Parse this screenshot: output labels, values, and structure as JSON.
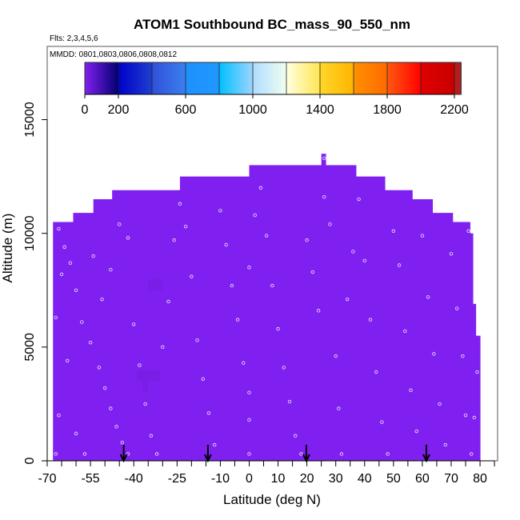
{
  "chart_data": {
    "type": "heatmap",
    "title": "ATOM1 Southbound BC_mass_90_550_nm",
    "subtitle": "Flts: 2,3,4,5,6",
    "annotation": "MMDD: 0801,0803,0806,0808,0812",
    "xlabel": "Latitude (deg N)",
    "ylabel": "Altitude (m)",
    "xlim": [
      -70,
      85
    ],
    "ylim": [
      0,
      18200
    ],
    "xticks": [
      -70,
      -65,
      -60,
      -55,
      -50,
      -45,
      -40,
      -35,
      -30,
      -25,
      -20,
      -15,
      -10,
      -5,
      0,
      5,
      10,
      15,
      20,
      25,
      30,
      35,
      40,
      45,
      50,
      55,
      60,
      65,
      70,
      75,
      80,
      85
    ],
    "xtick_labels": [
      "-70",
      "-55",
      "-40",
      "-25",
      "-10",
      "0",
      "10",
      "20",
      "30",
      "40",
      "50",
      "60",
      "70",
      "80"
    ],
    "xtick_label_values": [
      -70,
      -55,
      -40,
      -25,
      -10,
      0,
      10,
      20,
      30,
      40,
      50,
      60,
      70,
      80
    ],
    "yticks": [
      0,
      5000,
      10000,
      15000
    ],
    "ytick_labels": [
      "0",
      "5000",
      "10000",
      "15000"
    ],
    "grid": false,
    "fill_color": "#8020f0",
    "fill_value": 0,
    "coverage_profile": [
      {
        "lat_from": -68,
        "lat_to": -61,
        "alt_top": 10500
      },
      {
        "lat_from": -61,
        "lat_to": -54,
        "alt_top": 10900
      },
      {
        "lat_from": -54,
        "lat_to": -47.5,
        "alt_top": 11500
      },
      {
        "lat_from": -47.5,
        "lat_to": -24,
        "alt_top": 11900
      },
      {
        "lat_from": -24,
        "lat_to": 0,
        "alt_top": 12500
      },
      {
        "lat_from": 0,
        "lat_to": 25,
        "alt_top": 13000
      },
      {
        "lat_from": 25,
        "lat_to": 26.5,
        "alt_top": 13500
      },
      {
        "lat_from": 26.5,
        "lat_to": 37,
        "alt_top": 13000
      },
      {
        "lat_from": 37,
        "lat_to": 47,
        "alt_top": 12500
      },
      {
        "lat_from": 47,
        "lat_to": 56.5,
        "alt_top": 11900
      },
      {
        "lat_from": 56.5,
        "lat_to": 63.5,
        "alt_top": 11500
      },
      {
        "lat_from": 63.5,
        "lat_to": 70.5,
        "alt_top": 10900
      },
      {
        "lat_from": 70.5,
        "lat_to": 76.5,
        "alt_top": 10500
      },
      {
        "lat_from": 76.5,
        "lat_to": 77.5,
        "alt_top": 10000
      },
      {
        "lat_from": 77.5,
        "lat_to": 78.5,
        "alt_top": 6900
      },
      {
        "lat_from": 78.5,
        "lat_to": 80,
        "alt_top": 5500
      }
    ],
    "patches": [
      {
        "lat_from": -35,
        "lat_to": -30,
        "alt_from": 7500,
        "alt_to": 8000,
        "color": "#7a1ee6"
      },
      {
        "lat_from": -39,
        "lat_to": -31,
        "alt_from": 3500,
        "alt_to": 4000,
        "color": "#7a1ee6"
      },
      {
        "lat_from": -37,
        "lat_to": -35,
        "alt_from": 3000,
        "alt_to": 3500,
        "color": "#7a1ee6"
      }
    ],
    "sample_points": [
      [
        -66,
        10200
      ],
      [
        -64,
        9400
      ],
      [
        -62,
        8700
      ],
      [
        -60,
        7500
      ],
      [
        -58,
        6100
      ],
      [
        -55,
        5200
      ],
      [
        -52,
        4100
      ],
      [
        -50,
        3200
      ],
      [
        -48,
        2300
      ],
      [
        -46,
        1500
      ],
      [
        -44,
        800
      ],
      [
        -42,
        300
      ],
      [
        -66,
        2000
      ],
      [
        -63,
        4400
      ],
      [
        -60,
        1200
      ],
      [
        -57,
        300
      ],
      [
        -54,
        9000
      ],
      [
        -51,
        7100
      ],
      [
        -48,
        8400
      ],
      [
        -45,
        10400
      ],
      [
        -42,
        9800
      ],
      [
        -40,
        6000
      ],
      [
        -38,
        4200
      ],
      [
        -36,
        2500
      ],
      [
        -34,
        1100
      ],
      [
        -32,
        300
      ],
      [
        -30,
        5000
      ],
      [
        -28,
        7000
      ],
      [
        -26,
        9700
      ],
      [
        -24,
        11300
      ],
      [
        -22,
        10300
      ],
      [
        -20,
        8100
      ],
      [
        -18,
        5300
      ],
      [
        -16,
        3600
      ],
      [
        -14,
        2100
      ],
      [
        -12,
        700
      ],
      [
        -10,
        11000
      ],
      [
        -8,
        9500
      ],
      [
        -6,
        7700
      ],
      [
        -4,
        6200
      ],
      [
        -2,
        4300
      ],
      [
        0,
        3000
      ],
      [
        0,
        1800
      ],
      [
        0,
        300
      ],
      [
        0,
        8500
      ],
      [
        2,
        10800
      ],
      [
        4,
        12000
      ],
      [
        6,
        9900
      ],
      [
        8,
        7700
      ],
      [
        10,
        5800
      ],
      [
        12,
        4100
      ],
      [
        14,
        2600
      ],
      [
        16,
        1100
      ],
      [
        18,
        300
      ],
      [
        20,
        9700
      ],
      [
        22,
        8300
      ],
      [
        24,
        6600
      ],
      [
        26,
        13300
      ],
      [
        26,
        11600
      ],
      [
        28,
        10400
      ],
      [
        30,
        4600
      ],
      [
        31,
        2300
      ],
      [
        32,
        300
      ],
      [
        34,
        7100
      ],
      [
        36,
        9200
      ],
      [
        38,
        11500
      ],
      [
        40,
        8800
      ],
      [
        42,
        6200
      ],
      [
        44,
        3900
      ],
      [
        46,
        1700
      ],
      [
        48,
        300
      ],
      [
        50,
        10100
      ],
      [
        52,
        8600
      ],
      [
        54,
        5700
      ],
      [
        56,
        3100
      ],
      [
        58,
        1300
      ],
      [
        60,
        9900
      ],
      [
        62,
        7200
      ],
      [
        64,
        4700
      ],
      [
        66,
        2500
      ],
      [
        68,
        700
      ],
      [
        70,
        9100
      ],
      [
        72,
        6700
      ],
      [
        74,
        4600
      ],
      [
        75,
        2000
      ],
      [
        76,
        10100
      ],
      [
        77,
        300
      ],
      [
        78,
        1900
      ],
      [
        79,
        3900
      ],
      [
        -67,
        300
      ],
      [
        -67,
        6300
      ],
      [
        -65,
        8200
      ]
    ],
    "flight_markers_lat": [
      -43.5,
      -14.3,
      19.8,
      61.4
    ],
    "colorbar": {
      "range": [
        0,
        2240
      ],
      "tick_values": [
        0,
        200,
        600,
        1000,
        1400,
        1800,
        2200
      ],
      "tick_labels": [
        "0",
        "200",
        "600",
        "1000",
        "1400",
        "1800",
        "2200"
      ],
      "breaks": [
        0,
        200,
        400,
        600,
        800,
        1000,
        1200,
        1400,
        1600,
        1800,
        2000,
        2200,
        2240
      ],
      "segments": [
        [
          "#8020f0",
          "#000070"
        ],
        [
          "#0000c8",
          "#2040d0"
        ],
        [
          "#3050d8",
          "#3a80f0"
        ],
        [
          "#1e90ff",
          "#2098ff"
        ],
        [
          "#00bfff",
          "#9ed4ff"
        ],
        [
          "#b0dcff",
          "#f0fff0"
        ],
        [
          "#ffffe0",
          "#ffe650"
        ],
        [
          "#ffd72a",
          "#ffb400"
        ],
        [
          "#ff9000",
          "#ff6a00"
        ],
        [
          "#ff5a10",
          "#ff0000"
        ],
        [
          "#e00000",
          "#c80000"
        ],
        [
          "#b21d1d",
          "#b21d1d"
        ]
      ]
    }
  }
}
